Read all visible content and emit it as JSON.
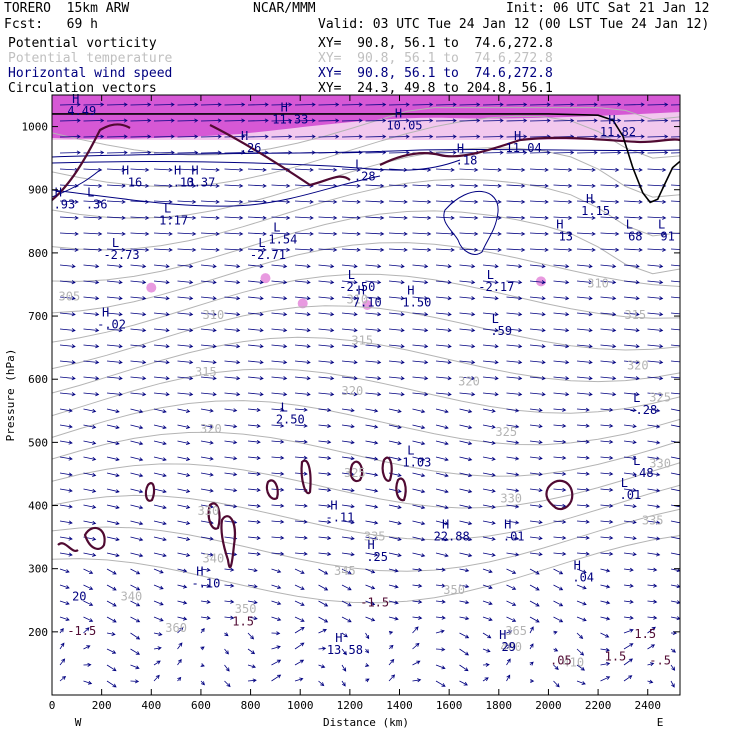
{
  "header": {
    "model": "TORERO  15km ARW",
    "forecast": "Fcst:   69 h",
    "source": "NCAR/MMM",
    "init": "Init: 06 UTC Sat 21 Jan 12",
    "valid": "Valid: 03 UTC Tue 24 Jan 12 (00 LST Tue 24 Jan 12)"
  },
  "fields": [
    {
      "name": "Potential vorticity",
      "xy": "XY=  90.8, 56.1 to  74.6,272.8",
      "color": "#000000"
    },
    {
      "name": "Potential temperature",
      "xy": "XY=  90.8, 56.1 to  74.6,272.8",
      "color": "#c0c0c0"
    },
    {
      "name": "Horizontal wind speed",
      "xy": "XY=  90.8, 56.1 to  74.6,272.8",
      "color": "#000080"
    },
    {
      "name": "Circulation vectors",
      "xy": "XY=  24.3, 49.8 to 204.8, 56.1",
      "color": "#000000"
    }
  ],
  "chart_data": {
    "type": "cross-section",
    "xlabel": "Distance (km)",
    "ylabel": "Pressure (hPa)",
    "xlim": [
      0,
      2530
    ],
    "ylim": [
      1050,
      100
    ],
    "xticks": [
      0,
      200,
      400,
      600,
      800,
      1000,
      1200,
      1400,
      1600,
      1800,
      2000,
      2200,
      2400
    ],
    "yticks": [
      200,
      300,
      400,
      500,
      600,
      700,
      800,
      900,
      1000
    ],
    "x_endpoints": {
      "left": "W",
      "right": "E"
    },
    "theta_contours": [
      {
        "label": "305",
        "x": 70,
        "p": 725
      },
      {
        "label": "310",
        "x": 650,
        "p": 695
      },
      {
        "label": "310",
        "x": 1230,
        "p": 720
      },
      {
        "label": "310",
        "x": 2200,
        "p": 745
      },
      {
        "label": "315",
        "x": 620,
        "p": 605
      },
      {
        "label": "315",
        "x": 1250,
        "p": 655
      },
      {
        "label": "315",
        "x": 2350,
        "p": 695
      },
      {
        "label": "320",
        "x": 640,
        "p": 515
      },
      {
        "label": "320",
        "x": 1210,
        "p": 575
      },
      {
        "label": "320",
        "x": 1680,
        "p": 590
      },
      {
        "label": "320",
        "x": 2360,
        "p": 615
      },
      {
        "label": "325",
        "x": 1220,
        "p": 445
      },
      {
        "label": "325",
        "x": 1830,
        "p": 510
      },
      {
        "label": "325",
        "x": 2450,
        "p": 565
      },
      {
        "label": "330",
        "x": 630,
        "p": 385
      },
      {
        "label": "330",
        "x": 1850,
        "p": 405
      },
      {
        "label": "330",
        "x": 2450,
        "p": 460
      },
      {
        "label": "335",
        "x": 1300,
        "p": 345
      },
      {
        "label": "335",
        "x": 2420,
        "p": 370
      },
      {
        "label": "340",
        "x": 320,
        "p": 250
      },
      {
        "label": "340",
        "x": 650,
        "p": 310
      },
      {
        "label": "345",
        "x": 1180,
        "p": 290
      },
      {
        "label": "350",
        "x": 780,
        "p": 230
      },
      {
        "label": "350",
        "x": 1620,
        "p": 260
      },
      {
        "label": "360",
        "x": 500,
        "p": 200
      },
      {
        "label": "365",
        "x": 1870,
        "p": 195
      },
      {
        "label": "400",
        "x": 1850,
        "p": 170
      },
      {
        "label": "410",
        "x": 2100,
        "p": 145
      }
    ],
    "wind_labels": [
      {
        "label": "20",
        "x": 110,
        "p": 250
      }
    ],
    "pv_labels": [
      {
        "label": "-1.5",
        "x": 120,
        "p": 195
      },
      {
        "label": "1.5",
        "x": 770,
        "p": 210
      },
      {
        "label": "-1.5",
        "x": 1300,
        "p": 240
      },
      {
        "label": "1.5",
        "x": 2270,
        "p": 155
      },
      {
        "label": "1.5",
        "x": 2390,
        "p": 190
      },
      {
        "label": ".05",
        "x": 2050,
        "p": 148
      },
      {
        "label": "-.5",
        "x": 2450,
        "p": 148
      }
    ],
    "extrema": [
      {
        "type": "H",
        "value": "13.58",
        "x": 1180,
        "p": 165
      },
      {
        "type": "H",
        "value": "29",
        "x": 1840,
        "p": 170
      },
      {
        "type": "H",
        "value": "-.10",
        "x": 620,
        "p": 270
      },
      {
        "type": "H",
        "value": ".25",
        "x": 1310,
        "p": 312
      },
      {
        "type": "H",
        "value": "22.88",
        "x": 1610,
        "p": 345
      },
      {
        "type": "H",
        "value": ".01",
        "x": 1860,
        "p": 345
      },
      {
        "type": "H",
        "value": ".04",
        "x": 2140,
        "p": 280
      },
      {
        "type": "H",
        "value": "-.11",
        "x": 1160,
        "p": 375
      },
      {
        "type": "L",
        "value": ".01",
        "x": 2330,
        "p": 410
      },
      {
        "type": "L",
        "value": ".48",
        "x": 2380,
        "p": 445
      },
      {
        "type": "L",
        "value": "1.03",
        "x": 1470,
        "p": 462
      },
      {
        "type": "L",
        "value": "2.50",
        "x": 960,
        "p": 530
      },
      {
        "type": "L",
        "value": "-.28",
        "x": 2380,
        "p": 545
      },
      {
        "type": "H",
        "value": "-.02",
        "x": 240,
        "p": 680
      },
      {
        "type": "L",
        "value": ".59",
        "x": 1810,
        "p": 670
      },
      {
        "type": "H",
        "value": "7.10",
        "x": 1270,
        "p": 715
      },
      {
        "type": "H",
        "value": "1.50",
        "x": 1470,
        "p": 715
      },
      {
        "type": "L",
        "value": "-2.50",
        "x": 1230,
        "p": 740
      },
      {
        "type": "L",
        "value": "-2.17",
        "x": 1790,
        "p": 740
      },
      {
        "type": "L",
        "value": "-2.73",
        "x": 280,
        "p": 790
      },
      {
        "type": "L",
        "value": "-2.71",
        "x": 870,
        "p": 790
      },
      {
        "type": "L",
        "value": "1.54",
        "x": 930,
        "p": 815
      },
      {
        "type": "L",
        "value": "1.17",
        "x": 490,
        "p": 845
      },
      {
        "type": "H",
        "value": "13",
        "x": 2070,
        "p": 820
      },
      {
        "type": "L",
        "value": "68",
        "x": 2350,
        "p": 820
      },
      {
        "type": "L",
        "value": "91",
        "x": 2480,
        "p": 820
      },
      {
        "type": "L",
        "value": ".36",
        "x": 180,
        "p": 870
      },
      {
        "type": "H",
        "value": ".93",
        "x": 50,
        "p": 870
      },
      {
        "type": "H",
        "value": "1.15",
        "x": 2190,
        "p": 860
      },
      {
        "type": "H",
        "value": ".16",
        "x": 320,
        "p": 905
      },
      {
        "type": "H",
        "value": ".13",
        "x": 530,
        "p": 905
      },
      {
        "type": "H",
        "value": "0.37",
        "x": 600,
        "p": 905
      },
      {
        "type": "L",
        "value": ".28",
        "x": 1260,
        "p": 915
      },
      {
        "type": "H",
        "value": ".18",
        "x": 1670,
        "p": 940
      },
      {
        "type": "H",
        "value": ".26",
        "x": 800,
        "p": 960
      },
      {
        "type": "H",
        "value": "11.04",
        "x": 1900,
        "p": 960
      },
      {
        "type": "H",
        "value": "11.82",
        "x": 2280,
        "p": 985
      },
      {
        "type": "H",
        "value": "10.05",
        "x": 1420,
        "p": 995
      },
      {
        "type": "H",
        "value": "11.33",
        "x": 960,
        "p": 1005
      },
      {
        "type": "H",
        "value": "4.49",
        "x": 120,
        "p": 1018
      }
    ],
    "terrain": [
      [
        0,
        1020
      ],
      [
        400,
        1020
      ],
      [
        800,
        1020
      ],
      [
        1200,
        1020
      ],
      [
        1600,
        1020
      ],
      [
        2000,
        1020
      ],
      [
        2200,
        1018
      ],
      [
        2260,
        1010
      ],
      [
        2300,
        985
      ],
      [
        2340,
        935
      ],
      [
        2380,
        895
      ],
      [
        2410,
        880
      ],
      [
        2440,
        885
      ],
      [
        2470,
        910
      ],
      [
        2500,
        935
      ],
      [
        2530,
        945
      ]
    ],
    "colors": {
      "theta": "#b4b4b4",
      "wind": "#000080",
      "pv": "#500a32",
      "pv_shade_light": "#f4b8b8",
      "pv_shade_mid": "#e89ae0",
      "pv_shade_strong": "#cc33cc",
      "terrain": "#000000"
    }
  }
}
